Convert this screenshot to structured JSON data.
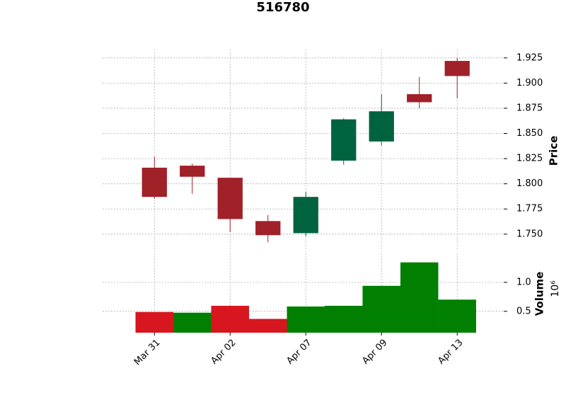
{
  "chart_data": {
    "type": "candlestick",
    "title": "516780",
    "categories": [
      "Mar 31",
      null,
      "Apr 02",
      null,
      "Apr 07",
      null,
      "Apr 09",
      null,
      "Apr 13"
    ],
    "open": [
      1.816,
      1.818,
      1.806,
      1.763,
      1.751,
      1.823,
      1.842,
      1.889,
      1.922
    ],
    "high": [
      1.827,
      1.82,
      1.806,
      1.769,
      1.792,
      1.865,
      1.889,
      1.906,
      1.925
    ],
    "low": [
      1.785,
      1.79,
      1.752,
      1.742,
      1.748,
      1.819,
      1.838,
      1.875,
      1.885
    ],
    "close": [
      1.787,
      1.807,
      1.765,
      1.749,
      1.787,
      1.864,
      1.872,
      1.881,
      1.907
    ],
    "volume": [
      0.488,
      0.476,
      0.595,
      0.369,
      0.583,
      0.595,
      0.94,
      1.345,
      0.702
    ],
    "up_color": "#006340",
    "down_color": "#a02128",
    "volume_up_color": "#007f00",
    "volume_down_color": "#d7161f",
    "xlim": [
      -1.37,
      9.23
    ],
    "ylim": [
      1.733,
      1.9333
    ],
    "yticks": [
      {
        "value": 1.75,
        "label": "1.750"
      },
      {
        "value": 1.775,
        "label": "1.775"
      },
      {
        "value": 1.8,
        "label": "1.800"
      },
      {
        "value": 1.825,
        "label": "1.825"
      },
      {
        "value": 1.85,
        "label": "1.850"
      },
      {
        "value": 1.875,
        "label": "1.875"
      },
      {
        "value": 1.9,
        "label": "1.900"
      },
      {
        "value": 1.925,
        "label": "1.925"
      }
    ],
    "y_label": "Price",
    "volume_ylim": [
      0.131,
      1.5
    ],
    "volume_yticks": [
      0.5,
      {
        "value": 1,
        "label": "1.0"
      }
    ],
    "volume_label": "Volume",
    "volume_offset": "10⁶",
    "grid": true
  }
}
